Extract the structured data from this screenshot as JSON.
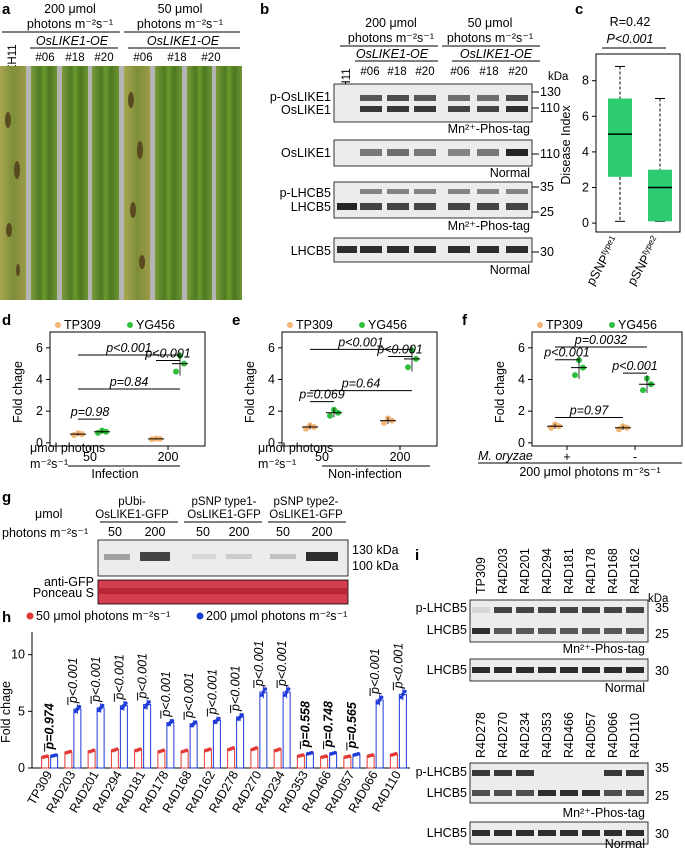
{
  "panels": {
    "a": {
      "label": "a",
      "header_left": [
        "200 μmol",
        "photons m⁻²s⁻¹"
      ],
      "header_right": [
        "50 μmol",
        "photons m⁻²s⁻¹"
      ],
      "group_label": "OsLIKE1-OE",
      "lanes": [
        "ZH11",
        "#06",
        "#18",
        "#20",
        "#06",
        "#18",
        "#20"
      ]
    },
    "b": {
      "label": "b",
      "header_left": [
        "200 μmol",
        "photons m⁻²s⁻¹"
      ],
      "header_right": [
        "50 μmol",
        "photons m⁻²s⁻¹"
      ],
      "group_label": "OsLIKE1-OE",
      "lanes": [
        "ZH11",
        "#06",
        "#18",
        "#20",
        "#06",
        "#18",
        "#20"
      ],
      "kda_label": "kDa",
      "blots": [
        {
          "rows": [
            "p-OsLIKE1",
            "OsLIKE1"
          ],
          "markers": [
            "130",
            "110"
          ],
          "caption": "Mn²⁺-Phos-tag"
        },
        {
          "rows": [
            "OsLIKE1"
          ],
          "markers": [
            "110"
          ],
          "caption": "Normal"
        },
        {
          "rows": [
            "p-LHCB5",
            "LHCB5"
          ],
          "markers": [
            "35",
            "25"
          ],
          "caption": "Mn²⁺-Phos-tag"
        },
        {
          "rows": [
            "LHCB5"
          ],
          "markers": [
            "30"
          ],
          "caption": "Normal"
        }
      ]
    },
    "c": {
      "label": "c",
      "stat_r": "R=0.42",
      "stat_p": "P<0.001",
      "ylabel": "Disease Index",
      "yticks": [
        "0",
        "2",
        "4",
        "6",
        "8"
      ],
      "groups": [
        {
          "label": "pSNP",
          "sup": "type1",
          "min": 0.1,
          "q1": 2.6,
          "median": 5.0,
          "q3": 7.0,
          "max": 8.8
        },
        {
          "label": "pSNP",
          "sup": "type2",
          "min": 0.1,
          "q1": 0.1,
          "median": 2.0,
          "q3": 3.0,
          "max": 7.0
        }
      ],
      "box_color": "#2ecc71"
    },
    "d": {
      "label": "d",
      "legend": [
        "TP309",
        "YG456"
      ],
      "ylabel": "Fold chage",
      "yticks": [
        "0",
        "2",
        "4",
        "6"
      ],
      "xlabel_prefix": [
        "μmol photons",
        "m⁻²s⁻¹"
      ],
      "xticks": [
        "50",
        "200"
      ],
      "condition": "Infection",
      "stats": [
        "p=0.98",
        "p=0.84",
        "p<0.001",
        "p<0.001"
      ],
      "means": {
        "TP309_50": 0.55,
        "YG456_50": 0.7,
        "TP309_200": 0.25,
        "YG456_200": 5.0
      }
    },
    "e": {
      "label": "e",
      "legend": [
        "TP309",
        "YG456"
      ],
      "ylabel": "Fold chage",
      "yticks": [
        "0",
        "2",
        "4",
        "6"
      ],
      "xlabel_prefix": [
        "μmol photons",
        "m⁻²s⁻¹"
      ],
      "xticks": [
        "50",
        "200"
      ],
      "condition": "Non-infection",
      "stats": [
        "p=0.069",
        "p=0.64",
        "p<0.001",
        "p<0.001"
      ],
      "means": {
        "TP309_50": 1.0,
        "YG456_50": 1.9,
        "TP309_200": 1.4,
        "YG456_200": 5.3
      }
    },
    "f": {
      "label": "f",
      "legend": [
        "TP309",
        "YG456"
      ],
      "ylabel": "Fold chage",
      "yticks": [
        "0",
        "2",
        "4",
        "6"
      ],
      "xlabel_prefix": [
        "M. oryzae"
      ],
      "xticks": [
        "+",
        "-"
      ],
      "condition": "200 μmol photons m⁻²s⁻¹",
      "stats": [
        "p<0.001",
        "p=0.0032",
        "p<0.001",
        "p=0.97"
      ],
      "means": {
        "TP309_plus": 1.05,
        "YG456_plus": 4.75,
        "TP309_minus": 0.95,
        "YG456_minus": 3.7
      }
    },
    "g": {
      "label": "g",
      "row_label": [
        "μmol",
        "photons m⁻²s⁻¹"
      ],
      "constructs": [
        [
          "pUbi-",
          "OsLIKE1-GFP"
        ],
        [
          "pSNP type1-",
          "OsLIKE1-GFP"
        ],
        [
          "pSNP type2-",
          "OsLIKE1-GFP"
        ]
      ],
      "lanes": [
        "50",
        "200",
        "50",
        "200",
        "50",
        "200"
      ],
      "markers": [
        "130 kDa",
        "100 kDa"
      ],
      "rows": [
        "anti-GFP",
        "Ponceau S"
      ]
    },
    "h": {
      "label": "h",
      "legend": [
        "50 μmol photons m⁻²s⁻¹",
        "200 μmol photons m⁻²s⁻¹"
      ],
      "ylabel": "Fold chage",
      "yticks": [
        "0",
        "5",
        "10"
      ],
      "categories": [
        "TP309",
        "R4D203",
        "R4D201",
        "R4D294",
        "R4D181",
        "R4D178",
        "R4D168",
        "R4D162",
        "R4D278",
        "R4D270",
        "R4D234",
        "R4D353",
        "R4D466",
        "R4D057",
        "R4D066",
        "R4D110"
      ],
      "series": [
        {
          "name": "50 μmol photons m⁻²s⁻¹",
          "color": "#e53935",
          "values": [
            1.0,
            1.4,
            1.5,
            1.6,
            1.6,
            1.5,
            1.5,
            1.6,
            1.7,
            1.7,
            1.6,
            1.1,
            1.0,
            1.0,
            1.1,
            1.2
          ]
        },
        {
          "name": "200 μmol photons m⁻²s⁻¹",
          "color": "#1e3ad8",
          "values": [
            1.1,
            5.2,
            5.3,
            5.5,
            5.6,
            4.0,
            3.9,
            4.2,
            4.5,
            6.7,
            6.7,
            1.3,
            1.3,
            1.2,
            6.0,
            6.5
          ]
        }
      ],
      "pvalues": [
        "p=0.974",
        "p<0.001",
        "p<0.001",
        "p<0.001",
        "p<0.001",
        "p<0.001",
        "p<0.001",
        "p<0.001",
        "p<0.001",
        "p<0.001",
        "p<0.001",
        "p=0.558",
        "p=0.748",
        "p=0.565",
        "p<0.001",
        "p<0.001"
      ],
      "ylim": [
        0,
        12
      ]
    },
    "i": {
      "label": "i",
      "set1": [
        "TP309",
        "R4D203",
        "R4D201",
        "R4D294",
        "R4D181",
        "R4D178",
        "R4D168",
        "R4D162"
      ],
      "set2": [
        "R4D278",
        "R4D270",
        "R4D234",
        "R4D353",
        "R4D466",
        "R4D057",
        "R4D066",
        "R4D110"
      ],
      "kda_label": "kDa",
      "rows": [
        "p-LHCB5",
        "LHCB5",
        "LHCB5"
      ],
      "markers": [
        "35",
        "25",
        "30"
      ],
      "captions": [
        "Mn²⁺-Phos-tag",
        "Normal"
      ]
    }
  }
}
